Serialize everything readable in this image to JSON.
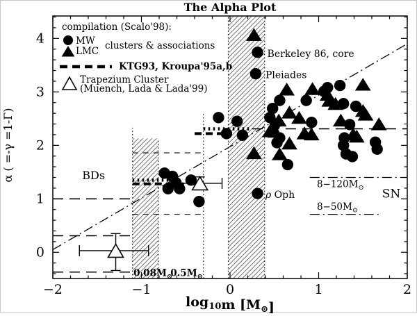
{
  "title": "The Alpha Plot",
  "axes": {
    "ylabel": "α ( =-γ =1-Γ)",
    "xlabel_plain": "log10m [M⊙]",
    "xlabel_parts": [
      {
        "t": "log"
      },
      {
        "t": "10",
        "sub": true
      },
      {
        "t": "m [M"
      },
      {
        "t": "⊙",
        "sub": true
      },
      {
        "t": "]"
      }
    ],
    "xlim": [
      -2,
      2
    ],
    "ylim": [
      -0.49,
      4.42
    ],
    "xticks": [
      -2,
      -1,
      0,
      1,
      2
    ],
    "yticks": [
      0,
      1,
      2,
      3,
      4
    ],
    "minor_step": 0.2,
    "grid": false
  },
  "legend": {
    "header": "compilation (Scalo'98):",
    "mw_label": "MW",
    "lmc_label": "LMC",
    "group_label": "clusters & associations",
    "imf_label": "KTG93, Kroupa'95a,b",
    "trapezium_label_1": "Trapezium Cluster",
    "trapezium_label_2": "(Muench, Lada & Lada'99)",
    "position": "top-left"
  },
  "colors": {
    "ink": "#000000",
    "paper": "#ffffff",
    "hatch": "#444444"
  },
  "chart_data": {
    "type": "scatter",
    "series": [
      {
        "name": "MW clusters & associations",
        "marker": "filled-circle",
        "points": [
          [
            0.31,
            3.74
          ],
          [
            0.29,
            3.34
          ],
          [
            0.31,
            1.1
          ],
          [
            -0.74,
            1.48
          ],
          [
            -0.65,
            1.42
          ],
          [
            -0.61,
            1.3
          ],
          [
            -0.7,
            1.19
          ],
          [
            -0.57,
            1.19
          ],
          [
            -0.44,
            1.35
          ],
          [
            -0.35,
            0.95
          ],
          [
            -0.13,
            2.52
          ],
          [
            -0.04,
            2.22
          ],
          [
            0.08,
            2.45
          ],
          [
            0.14,
            2.19
          ],
          [
            0.45,
            2.52
          ],
          [
            0.48,
            2.69
          ],
          [
            0.51,
            2.4
          ],
          [
            0.56,
            2.84
          ],
          [
            0.53,
            2.05
          ],
          [
            0.56,
            2.14
          ],
          [
            0.65,
            1.64
          ],
          [
            0.86,
            2.84
          ],
          [
            0.92,
            2.43
          ],
          [
            1.06,
            3.01
          ],
          [
            1.1,
            3.08
          ],
          [
            1.24,
            3.12
          ],
          [
            1.28,
            2.78
          ],
          [
            1.42,
            2.73
          ],
          [
            1.35,
            2.39
          ],
          [
            1.29,
            2.14
          ],
          [
            1.28,
            2.0
          ],
          [
            1.31,
            1.84
          ],
          [
            1.38,
            1.79
          ],
          [
            1.64,
            2.06
          ],
          [
            1.66,
            1.93
          ]
        ]
      },
      {
        "name": "LMC clusters & associations",
        "marker": "filled-triangle",
        "points": [
          [
            0.27,
            4.07
          ],
          [
            0.64,
            3.05
          ],
          [
            0.93,
            3.06
          ],
          [
            1.5,
            3.14
          ],
          [
            1.1,
            2.95
          ],
          [
            0.55,
            2.47
          ],
          [
            0.67,
            2.62
          ],
          [
            0.78,
            2.52
          ],
          [
            1.12,
            2.84
          ],
          [
            1.19,
            2.78
          ],
          [
            1.5,
            2.65
          ],
          [
            1.53,
            2.58
          ],
          [
            1.25,
            2.47
          ],
          [
            1.68,
            2.4
          ],
          [
            0.45,
            2.27
          ],
          [
            0.51,
            2.26
          ],
          [
            0.67,
            2.04
          ],
          [
            0.84,
            2.23
          ],
          [
            0.92,
            2.21
          ],
          [
            1.39,
            2.21
          ],
          [
            1.43,
            2.17
          ],
          [
            0.27,
            1.86
          ],
          [
            0.56,
            1.84
          ]
        ]
      },
      {
        "name": "Trapezium Cluster (Muench, Lada & Lada'99)",
        "marker": "open-triangle",
        "points_with_errors": [
          {
            "x": -1.29,
            "y": 0.03,
            "xerr": [
              -1.7,
              -0.92
            ],
            "yerr": [
              -0.34,
              0.35
            ]
          },
          {
            "x": -0.34,
            "y": 1.29,
            "xerr": [
              -0.65,
              -0.09
            ],
            "yerr": [
              1.17,
              1.41
            ]
          }
        ]
      }
    ],
    "lines": [
      {
        "name": "trend-dash-dot",
        "style": "dash-dot",
        "x": [
          -2,
          2
        ],
        "y": [
          0.05,
          3.9
        ]
      },
      {
        "name": "bd-range-upper",
        "style": "long-dash",
        "x": [
          -2,
          -1.1
        ],
        "y": [
          1.0,
          1.0
        ]
      },
      {
        "name": "bd-range-mid",
        "style": "long-dash",
        "x": [
          -2,
          -1.1
        ],
        "y": [
          0.31,
          0.31
        ]
      },
      {
        "name": "bd-range-lower",
        "style": "long-dash",
        "x": [
          -2,
          -1.1
        ],
        "y": [
          -0.37,
          -0.37
        ]
      },
      {
        "name": "alpha1-ktg93-segment",
        "style": "thick-dash",
        "x": [
          -1.1,
          -0.3
        ],
        "y": [
          1.28,
          1.28
        ]
      },
      {
        "name": "alpha1-kroupa95-segment",
        "style": "thick-dot",
        "x": [
          -1.1,
          -0.62
        ],
        "y": [
          1.35,
          1.35
        ]
      },
      {
        "name": "alpha1-upper-bound",
        "style": "short-dash",
        "x": [
          -1.1,
          -0.31
        ],
        "y": [
          1.86,
          1.86
        ]
      },
      {
        "name": "alpha1-lower-bound",
        "style": "short-dash",
        "x": [
          -1.1,
          -0.31
        ],
        "y": [
          0.71,
          0.71
        ]
      },
      {
        "name": "alpha2-ktg93-segment",
        "style": "thick-dash",
        "x": [
          -0.4,
          0.0
        ],
        "y": [
          2.22,
          2.22
        ]
      },
      {
        "name": "alpha2-kroupa95-segment",
        "style": "thick-dot",
        "x": [
          -0.3,
          0.22
        ],
        "y": [
          2.31,
          2.31
        ]
      },
      {
        "name": "alpha-2.3-high-mass",
        "style": "long-dash",
        "x": [
          0.25,
          2.0
        ],
        "y": [
          2.31,
          2.31
        ]
      },
      {
        "name": "sn-8-120-line",
        "style": "dash-dot",
        "x": [
          0.9,
          1.98
        ],
        "y": [
          1.4,
          1.4
        ]
      },
      {
        "name": "sn-8-50-line",
        "style": "dash-dot",
        "x": [
          0.9,
          1.7
        ],
        "y": [
          0.71,
          0.71
        ]
      }
    ],
    "vlines": [
      {
        "name": "mass-0.08-line",
        "style": "dotted",
        "x": -1.1,
        "y": [
          -0.49,
          2.33
        ]
      },
      {
        "name": "band1-right-edge",
        "style": "dotted",
        "x": -0.81,
        "y": [
          -0.49,
          2.13
        ]
      },
      {
        "name": "mass-0.5-line",
        "style": "dotted",
        "x": -0.3,
        "y": [
          -0.49,
          2.62
        ]
      },
      {
        "name": "band2-left-edge",
        "style": "dotted",
        "x": -0.02,
        "y": [
          -0.49,
          4.42
        ]
      },
      {
        "name": "band2-right-edge",
        "style": "dotted",
        "x": 0.39,
        "y": [
          -0.49,
          4.42
        ]
      }
    ],
    "hatch_bands": [
      {
        "name": "substellar-transition-band",
        "x": [
          -1.1,
          -0.81
        ],
        "y": [
          -0.49,
          2.13
        ]
      },
      {
        "name": "solar-transition-band",
        "x": [
          -0.02,
          0.39
        ],
        "y": [
          -0.49,
          4.42
        ]
      }
    ],
    "annotations": [
      {
        "name": "berkeley-86-label",
        "parts": [
          {
            "t": "Berkeley 86, core"
          }
        ],
        "x": 0.42,
        "y": 3.72,
        "anchor": "start",
        "size": 14
      },
      {
        "name": "pleiades-label",
        "parts": [
          {
            "t": "Pleiades"
          }
        ],
        "x": 0.4,
        "y": 3.32,
        "anchor": "start",
        "size": 14
      },
      {
        "name": "rho-oph-label",
        "parts": [
          {
            "t": "ρ",
            "italic": true
          },
          {
            "t": " Oph"
          }
        ],
        "x": 0.4,
        "y": 1.08,
        "anchor": "start",
        "size": 14
      },
      {
        "name": "bd-region-label",
        "parts": [
          {
            "t": "BDs"
          }
        ],
        "x": -1.54,
        "y": 1.44,
        "anchor": "middle",
        "size": 16
      },
      {
        "name": "sn-region-label",
        "parts": [
          {
            "t": "SN"
          }
        ],
        "x": 1.82,
        "y": 1.1,
        "anchor": "middle",
        "size": 17
      },
      {
        "name": "sn-8-120-label",
        "parts": [
          {
            "t": "8−120M"
          },
          {
            "t": "⊙",
            "sub": true
          }
        ],
        "x": 0.98,
        "y": 1.28,
        "anchor": "start",
        "size": 13.5
      },
      {
        "name": "sn-8-50-label",
        "parts": [
          {
            "t": "8−50M"
          },
          {
            "t": "⊙",
            "sub": true
          }
        ],
        "x": 0.98,
        "y": 0.86,
        "anchor": "start",
        "size": 13.5
      },
      {
        "name": "mass-0.08-label",
        "parts": [
          {
            "t": "0.08M"
          },
          {
            "t": "⊙",
            "sub": true
          }
        ],
        "x": -0.87,
        "y": -0.38,
        "anchor": "middle",
        "size": 13.5,
        "bold": true
      },
      {
        "name": "mass-0.5-label",
        "parts": [
          {
            "t": "0.5M"
          },
          {
            "t": "⊙",
            "sub": true
          }
        ],
        "x": -0.49,
        "y": -0.38,
        "anchor": "middle",
        "size": 13.5,
        "bold": true
      }
    ]
  }
}
